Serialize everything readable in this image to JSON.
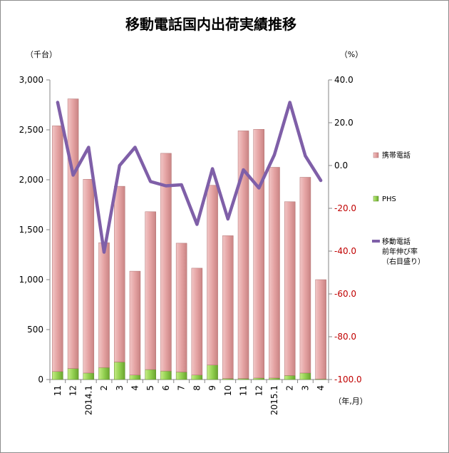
{
  "chart_data": {
    "type": "bar",
    "title": "移動電話国内出荷実績推移",
    "y_unit_left": "（千台）",
    "y_unit_right": "（%）",
    "x_unit": "（年,月）",
    "categories": [
      "11",
      "12",
      "2014.1",
      "2",
      "3",
      "4",
      "5",
      "6",
      "7",
      "8",
      "9",
      "10",
      "11",
      "12",
      "2015.1",
      "2",
      "3",
      "4"
    ],
    "y_ticks_left": [
      "0",
      "500",
      "1,000",
      "1,500",
      "2,000",
      "2,500",
      "3,000"
    ],
    "y_ticks_right": [
      "-100.0",
      "-80.0",
      "-60.0",
      "-40.0",
      "-20.0",
      "0.0",
      "20.0",
      "40.0"
    ],
    "ylim_left": [
      0,
      3000
    ],
    "ylim_right": [
      -100,
      40
    ],
    "series": [
      {
        "name": "携帯電話",
        "kind": "stacked-bar",
        "color": "#e6a3a3",
        "values": [
          2460,
          2700,
          1940,
          1250,
          1760,
          1040,
          1580,
          2180,
          1290,
          1070,
          1800,
          1430,
          2480,
          2490,
          2110,
          1740,
          1960,
          995
        ]
      },
      {
        "name": "PHS",
        "kind": "stacked-bar",
        "color": "#92d050",
        "values": [
          80,
          110,
          65,
          120,
          175,
          45,
          100,
          85,
          75,
          45,
          145,
          10,
          10,
          15,
          15,
          40,
          65,
          5
        ]
      },
      {
        "name": "移動電話\n前年伸び率\n（右目盛り）",
        "legend_lines": [
          "移動電話",
          "前年伸び率",
          "（右目盛り）"
        ],
        "kind": "line",
        "axis": "right",
        "color": "#7f5fa8",
        "values": [
          29.5,
          -4.5,
          8.5,
          -40.5,
          0.0,
          8.5,
          -7.5,
          -9.5,
          -9.0,
          -27.5,
          -1.5,
          -25.0,
          -2.0,
          -10.5,
          5.0,
          29.5,
          4.5,
          -7.0
        ]
      }
    ],
    "grid": false,
    "legend": "right"
  }
}
